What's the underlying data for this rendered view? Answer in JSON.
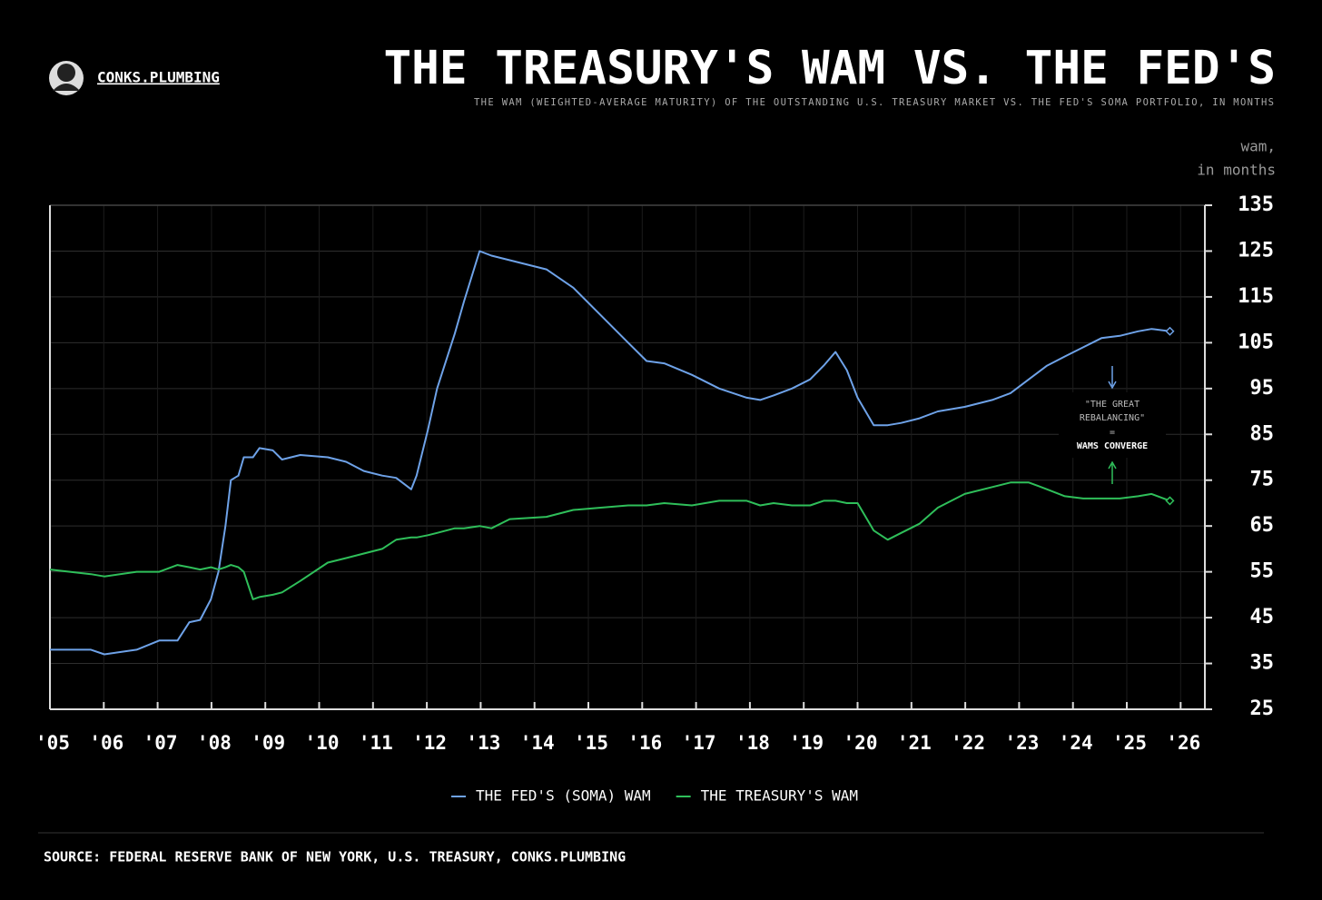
{
  "brand": "CONKS.PLUMBING",
  "source": "SOURCE: FEDERAL RESERVE BANK OF NEW YORK, U.S. TREASURY, CONKS.PLUMBING",
  "chart_data": {
    "type": "line",
    "title": "THE TREASURY'S WAM VS. THE FED'S",
    "subtitle": "THE WAM (WEIGHTED-AVERAGE MATURITY) OF THE OUTSTANDING U.S. TREASURY MARKET VS. THE FED'S SOMA PORTFOLIO, IN MONTHS",
    "y_label": [
      "wam,",
      "in months"
    ],
    "annotation": [
      "\"THE GREAT",
      "REBALANCING\"",
      "=",
      "WAMS CONVERGE"
    ],
    "x": [
      2005.0,
      2005.76,
      2006.01,
      2006.61,
      2007.03,
      2007.37,
      2007.59,
      2007.79,
      2007.99,
      2008.13,
      2008.26,
      2008.36,
      2008.5,
      2008.6,
      2008.77,
      2008.89,
      2009.14,
      2009.31,
      2009.65,
      2010.16,
      2010.5,
      2010.83,
      2011.17,
      2011.43,
      2011.71,
      2011.81,
      2012.02,
      2012.19,
      2012.52,
      2012.69,
      2012.98,
      2013.2,
      2013.54,
      2014.22,
      2014.72,
      2015.23,
      2015.74,
      2016.08,
      2016.41,
      2016.92,
      2017.43,
      2017.94,
      2018.19,
      2018.44,
      2018.78,
      2019.12,
      2019.37,
      2019.59,
      2019.8,
      2020.0,
      2020.3,
      2020.56,
      2020.81,
      2021.15,
      2021.49,
      2021.99,
      2022.5,
      2022.84,
      2023.18,
      2023.52,
      2023.85,
      2024.19,
      2024.53,
      2024.87,
      2025.21,
      2025.46,
      2025.8
    ],
    "series": [
      {
        "name": "THE FED'S (SOMA) WAM",
        "color": "#6ea2e8",
        "values": [
          38,
          38,
          37,
          38,
          40,
          40,
          44,
          44.5,
          49,
          55,
          65,
          75,
          76,
          80,
          80,
          82,
          81.5,
          79.5,
          80.5,
          80,
          79,
          77,
          76,
          75.5,
          73,
          76,
          86,
          95,
          107,
          114,
          125,
          124,
          123,
          121,
          117,
          111,
          105,
          101,
          100.5,
          98,
          95,
          93,
          92.5,
          93.5,
          95,
          97,
          100,
          103,
          99,
          93,
          87,
          87,
          87.5,
          88.5,
          90,
          91,
          92.5,
          94,
          97,
          100,
          102,
          104,
          106,
          106.5,
          107.5,
          108,
          107.5
        ]
      },
      {
        "name": "THE TREASURY'S WAM",
        "color": "#2fbf5a",
        "values": [
          55.5,
          54.5,
          54,
          55,
          55,
          56.5,
          56,
          55.5,
          56,
          55.5,
          56,
          56.5,
          56,
          55,
          49,
          49.5,
          50,
          50.5,
          53,
          57,
          58,
          59,
          60,
          62,
          62.5,
          62.5,
          63,
          63.5,
          64.5,
          64.5,
          65,
          64.5,
          66.5,
          67,
          68.5,
          69,
          69.5,
          69.5,
          70,
          69.5,
          70.5,
          70.5,
          69.5,
          70,
          69.5,
          69.5,
          70.5,
          70.5,
          70,
          70,
          64,
          62,
          63.5,
          65.5,
          69,
          72,
          73.5,
          74.5,
          74.5,
          73,
          71.5,
          71,
          71,
          71,
          71.5,
          72,
          70.5
        ]
      }
    ],
    "xlim": [
      2005,
      2026.45
    ],
    "xticks": [
      {
        "value": 2005,
        "label": "'05"
      },
      {
        "value": 2006,
        "label": "'06"
      },
      {
        "value": 2007,
        "label": "'07"
      },
      {
        "value": 2008,
        "label": "'08"
      },
      {
        "value": 2009,
        "label": "'09"
      },
      {
        "value": 2010,
        "label": "'10"
      },
      {
        "value": 2011,
        "label": "'11"
      },
      {
        "value": 2012,
        "label": "'12"
      },
      {
        "value": 2013,
        "label": "'13"
      },
      {
        "value": 2014,
        "label": "'14"
      },
      {
        "value": 2015,
        "label": "'15"
      },
      {
        "value": 2016,
        "label": "'16"
      },
      {
        "value": 2017,
        "label": "'17"
      },
      {
        "value": 2018,
        "label": "'18"
      },
      {
        "value": 2019,
        "label": "'19"
      },
      {
        "value": 2020,
        "label": "'20"
      },
      {
        "value": 2021,
        "label": "'21"
      },
      {
        "value": 2022,
        "label": "'22"
      },
      {
        "value": 2023,
        "label": "'23"
      },
      {
        "value": 2024,
        "label": "'24"
      },
      {
        "value": 2025,
        "label": "'25"
      },
      {
        "value": 2026,
        "label": "'26"
      }
    ],
    "ylim": [
      25,
      135
    ],
    "yticks": [
      25,
      35,
      45,
      55,
      65,
      75,
      85,
      95,
      105,
      115,
      125,
      135
    ],
    "grid": true,
    "legend": "bottom"
  }
}
